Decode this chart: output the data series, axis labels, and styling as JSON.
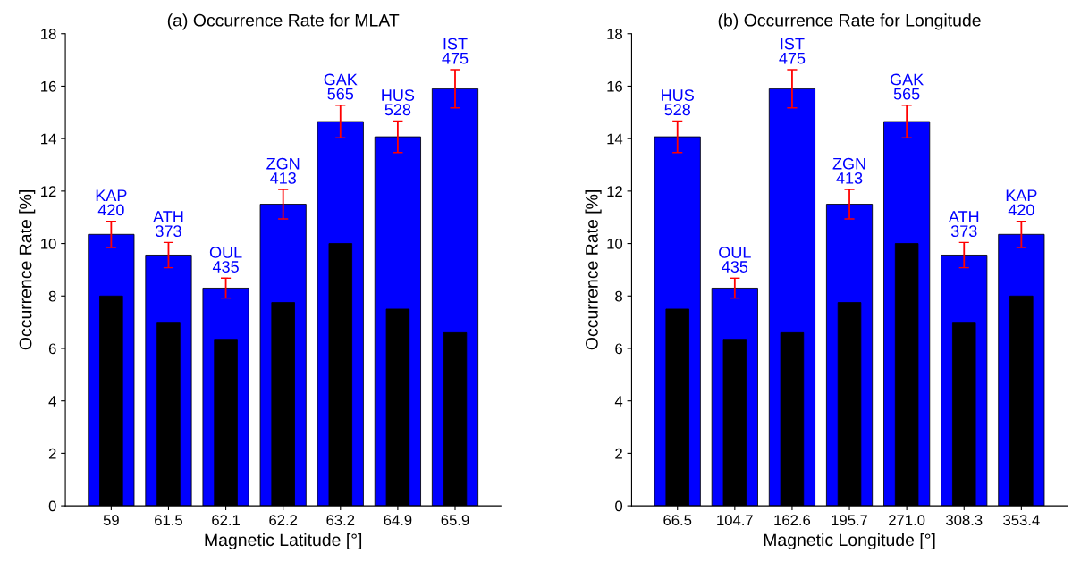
{
  "chart_data": [
    {
      "type": "bar",
      "title": "(a) Occurrence Rate for MLAT",
      "xlabel": "Magnetic Latitude [°]",
      "ylabel": "Occurrence Rate [%]",
      "categories": [
        "59",
        "61.5",
        "62.1",
        "62.2",
        "63.2",
        "64.9",
        "65.9"
      ],
      "series": [
        {
          "color": "#0000ff",
          "values": [
            10.35,
            9.56,
            8.3,
            11.5,
            14.65,
            14.07,
            15.9
          ],
          "errors": [
            0.5,
            0.48,
            0.38,
            0.56,
            0.62,
            0.6,
            0.73
          ]
        },
        {
          "color": "#000000",
          "values": [
            8.0,
            7.0,
            6.35,
            7.75,
            10.0,
            7.5,
            6.6
          ]
        }
      ],
      "ylim": [
        0,
        18
      ],
      "yticks": [
        0,
        2,
        4,
        6,
        8,
        10,
        12,
        14,
        16,
        18
      ],
      "grid": false,
      "legend": false,
      "annotations": [
        {
          "text": "KAP\n420",
          "x": "59",
          "y": 10.85
        },
        {
          "text": "ATH\n373",
          "x": "61.5",
          "y": 10.04
        },
        {
          "text": "OUL\n435",
          "x": "62.1",
          "y": 8.68
        },
        {
          "text": "ZGN\n413",
          "x": "62.2",
          "y": 12.06
        },
        {
          "text": "GAK\n565",
          "x": "63.2",
          "y": 15.27
        },
        {
          "text": "HUS\n528",
          "x": "64.9",
          "y": 14.67
        },
        {
          "text": "IST\n475",
          "x": "65.9",
          "y": 16.63
        }
      ]
    },
    {
      "type": "bar",
      "title": "(b) Occurrence Rate for Longitude",
      "xlabel": "Magnetic Longitude [°]",
      "ylabel": "Occurrence Rate [%]",
      "categories": [
        "66.5",
        "104.7",
        "162.6",
        "195.7",
        "271.0",
        "308.3",
        "353.4"
      ],
      "series": [
        {
          "color": "#0000ff",
          "values": [
            14.07,
            8.3,
            15.9,
            11.5,
            14.65,
            9.56,
            10.35
          ],
          "errors": [
            0.6,
            0.38,
            0.73,
            0.56,
            0.62,
            0.48,
            0.5
          ]
        },
        {
          "color": "#000000",
          "values": [
            7.5,
            6.35,
            6.6,
            7.75,
            10.0,
            7.0,
            8.0
          ]
        }
      ],
      "ylim": [
        0,
        18
      ],
      "yticks": [
        0,
        2,
        4,
        6,
        8,
        10,
        12,
        14,
        16,
        18
      ],
      "grid": false,
      "legend": false,
      "annotations": [
        {
          "text": "HUS\n528",
          "x": "66.5",
          "y": 14.67
        },
        {
          "text": "OUL\n435",
          "x": "104.7",
          "y": 8.68
        },
        {
          "text": "IST\n475",
          "x": "162.6",
          "y": 16.63
        },
        {
          "text": "ZGN\n413",
          "x": "195.7",
          "y": 12.06
        },
        {
          "text": "GAK\n565",
          "x": "271.0",
          "y": 15.27
        },
        {
          "text": "ATH\n373",
          "x": "308.3",
          "y": 10.04
        },
        {
          "text": "KAP\n420",
          "x": "353.4",
          "y": 10.85
        }
      ]
    }
  ]
}
